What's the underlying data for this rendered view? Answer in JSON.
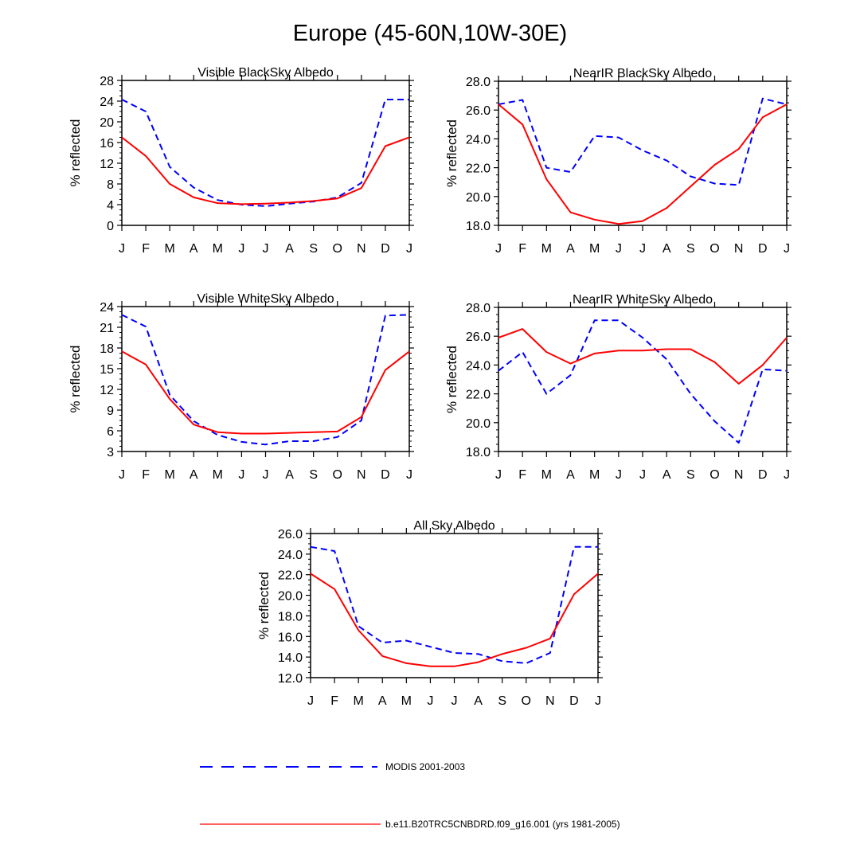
{
  "figure_title": "Europe (45-60N,10W-30E)",
  "colors": {
    "modis": "#0000ff",
    "model": "#ff0000",
    "axis": "#000000"
  },
  "legend": {
    "modis_label": "MODIS 2001-2003",
    "model_label": "b.e11.B20TRC5CNBDRD.f09_g16.001 (yrs 1981-2005)"
  },
  "chart_data": [
    {
      "type": "line",
      "title": "Visible BlackSky Albedo",
      "ylabel": "% reflected",
      "categories": [
        "J",
        "F",
        "M",
        "A",
        "M",
        "J",
        "J",
        "A",
        "S",
        "O",
        "N",
        "D",
        "J"
      ],
      "ylim": [
        0,
        28
      ],
      "yticks": [
        "0",
        "4",
        "8",
        "12",
        "16",
        "20",
        "24",
        "28"
      ],
      "series": [
        {
          "name": "MODIS 2001-2003",
          "style": "dashed",
          "values": [
            24.3,
            22.0,
            11.3,
            7.3,
            4.9,
            4.0,
            3.7,
            4.2,
            4.6,
            5.4,
            8.2,
            24.3,
            24.3
          ]
        },
        {
          "name": "b.e11.B20TRC5CNBDRD.f09_g16.001 (yrs 1981-2005)",
          "style": "solid",
          "values": [
            17.0,
            13.4,
            8.0,
            5.4,
            4.3,
            4.1,
            4.2,
            4.4,
            4.7,
            5.2,
            7.2,
            15.3,
            17.0
          ]
        }
      ]
    },
    {
      "type": "line",
      "title": "NearIR BlackSky Albedo",
      "ylabel": "% reflected",
      "categories": [
        "J",
        "F",
        "M",
        "A",
        "M",
        "J",
        "J",
        "A",
        "S",
        "O",
        "N",
        "D",
        "J"
      ],
      "ylim": [
        18,
        28
      ],
      "yticks": [
        "18.0",
        "20.0",
        "22.0",
        "24.0",
        "26.0",
        "28.0"
      ],
      "series": [
        {
          "name": "MODIS 2001-2003",
          "style": "dashed",
          "values": [
            26.4,
            26.7,
            22.0,
            21.7,
            24.2,
            24.1,
            23.2,
            22.5,
            21.4,
            20.9,
            20.8,
            26.8,
            26.4
          ]
        },
        {
          "name": "b.e11.B20TRC5CNBDRD.f09_g16.001 (yrs 1981-2005)",
          "style": "solid",
          "values": [
            26.4,
            25.0,
            21.2,
            18.9,
            18.4,
            18.1,
            18.3,
            19.2,
            20.7,
            22.2,
            23.3,
            25.5,
            26.4
          ]
        }
      ]
    },
    {
      "type": "line",
      "title": "Visible WhiteSky Albedo",
      "ylabel": "% reflected",
      "categories": [
        "J",
        "F",
        "M",
        "A",
        "M",
        "J",
        "J",
        "A",
        "S",
        "O",
        "N",
        "D",
        "J"
      ],
      "ylim": [
        3,
        24
      ],
      "yticks": [
        "3",
        "6",
        "9",
        "12",
        "15",
        "18",
        "21",
        "24"
      ],
      "series": [
        {
          "name": "MODIS 2001-2003",
          "style": "dashed",
          "values": [
            22.8,
            21.1,
            11.2,
            7.4,
            5.4,
            4.4,
            4.0,
            4.5,
            4.5,
            5.1,
            7.5,
            22.7,
            22.8
          ]
        },
        {
          "name": "b.e11.B20TRC5CNBDRD.f09_g16.001 (yrs 1981-2005)",
          "style": "solid",
          "values": [
            17.5,
            15.6,
            10.6,
            6.9,
            5.8,
            5.6,
            5.6,
            5.7,
            5.8,
            5.9,
            8.0,
            14.8,
            17.5
          ]
        }
      ]
    },
    {
      "type": "line",
      "title": "NearIR WhiteSky Albedo",
      "ylabel": "% reflected",
      "categories": [
        "J",
        "F",
        "M",
        "A",
        "M",
        "J",
        "J",
        "A",
        "S",
        "O",
        "N",
        "D",
        "J"
      ],
      "ylim": [
        18,
        28
      ],
      "yticks": [
        "18.0",
        "20.0",
        "22.0",
        "24.0",
        "26.0",
        "28.0"
      ],
      "series": [
        {
          "name": "MODIS 2001-2003",
          "style": "dashed",
          "values": [
            23.6,
            24.9,
            22.0,
            23.3,
            27.1,
            27.1,
            25.9,
            24.4,
            22.0,
            20.1,
            18.6,
            23.7,
            23.6
          ]
        },
        {
          "name": "b.e11.B20TRC5CNBDRD.f09_g16.001 (yrs 1981-2005)",
          "style": "solid",
          "values": [
            25.9,
            26.5,
            24.9,
            24.1,
            24.8,
            25.0,
            25.0,
            25.1,
            25.1,
            24.2,
            22.7,
            24.0,
            25.9
          ]
        }
      ]
    },
    {
      "type": "line",
      "title": "All Sky Albedo",
      "ylabel": "% reflected",
      "categories": [
        "J",
        "F",
        "M",
        "A",
        "M",
        "J",
        "J",
        "A",
        "S",
        "O",
        "N",
        "D",
        "J"
      ],
      "ylim": [
        12,
        26
      ],
      "yticks": [
        "12.0",
        "14.0",
        "16.0",
        "18.0",
        "20.0",
        "22.0",
        "24.0",
        "26.0"
      ],
      "series": [
        {
          "name": "MODIS 2001-2003",
          "style": "dashed",
          "values": [
            24.7,
            24.3,
            17.0,
            15.4,
            15.6,
            15.0,
            14.4,
            14.3,
            13.6,
            13.4,
            14.4,
            24.7,
            24.7
          ]
        },
        {
          "name": "b.e11.B20TRC5CNBDRD.f09_g16.001 (yrs 1981-2005)",
          "style": "solid",
          "values": [
            22.1,
            20.6,
            16.6,
            14.1,
            13.4,
            13.1,
            13.1,
            13.5,
            14.3,
            14.9,
            15.8,
            20.1,
            22.1
          ]
        }
      ]
    }
  ]
}
